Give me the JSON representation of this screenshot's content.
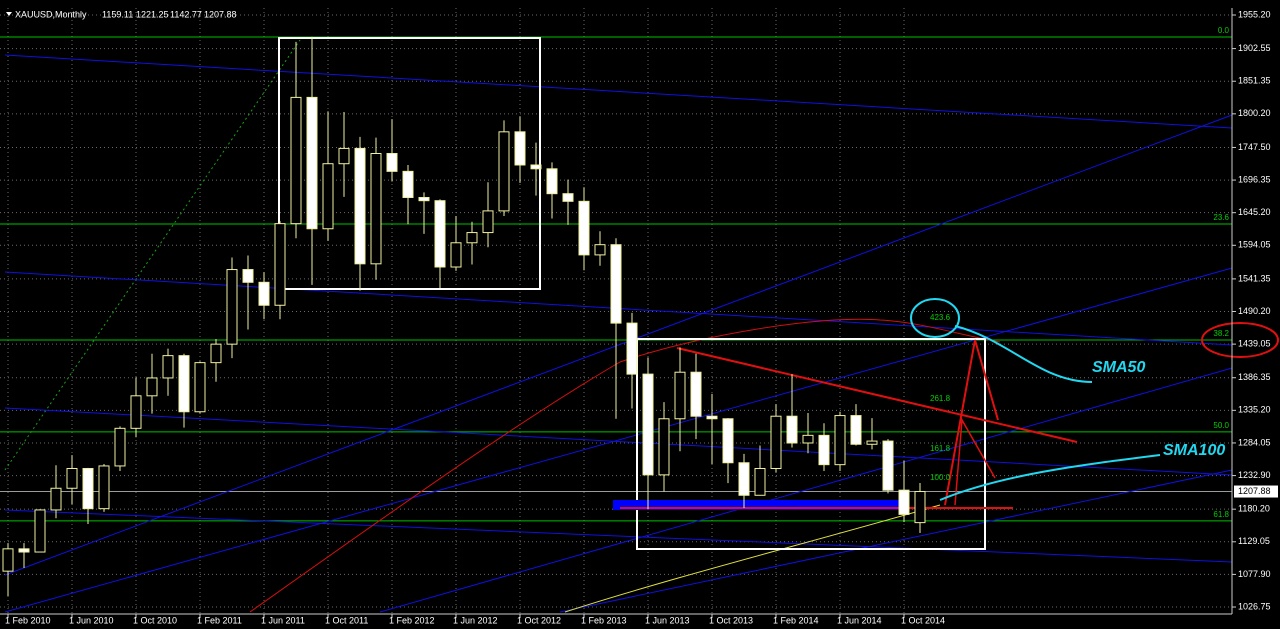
{
  "chart_data": {
    "type": "candlestick",
    "symbol": "XAUUSD,Monthly",
    "categories": [
      "1 Feb 2010",
      null,
      null,
      null,
      "1 Jun 2010",
      null,
      null,
      null,
      "1 Oct 2010",
      null,
      null,
      null,
      "1 Feb 2011",
      null,
      null,
      null,
      "1 Jun 2011",
      null,
      null,
      null,
      "1 Oct 2011",
      null,
      null,
      null,
      "1 Feb 2012",
      null,
      null,
      null,
      "1 Jun 2012",
      null,
      null,
      null,
      "1 Oct 2012",
      null,
      null,
      null,
      "1 Feb 2013",
      null,
      null,
      null,
      "1 Jun 2013",
      null,
      null,
      null,
      "1 Oct 2013",
      null,
      null,
      null,
      "1 Feb 2014",
      null,
      null,
      null,
      "1 Jun 2014",
      null,
      null,
      null,
      "1 Oct 2014",
      null
    ],
    "open": [
      1083,
      1118,
      1113,
      1179,
      1213,
      1244,
      1181,
      1248,
      1307,
      1358,
      1386,
      1421,
      1333,
      1410,
      1439,
      1556,
      1536,
      1500,
      1628,
      1826,
      1620,
      1722,
      1746,
      1565,
      1738,
      1710,
      1669,
      1664,
      1560,
      1598,
      1614,
      1648,
      1772,
      1720,
      1714,
      1675,
      1663,
      1579,
      1595,
      1472,
      1392,
      1234,
      1322,
      1395,
      1326,
      1322,
      1253,
      1202,
      1244,
      1326,
      1284,
      1296,
      1250,
      1327,
      1282,
      1287,
      1210,
      1159.11
    ],
    "high": [
      1127,
      1127,
      1180,
      1249,
      1265,
      1245,
      1251,
      1310,
      1387,
      1424,
      1432,
      1424,
      1412,
      1447,
      1575,
      1578,
      1552,
      1632,
      1913,
      1921,
      1804,
      1803,
      1764,
      1763,
      1792,
      1720,
      1677,
      1666,
      1640,
      1631,
      1693,
      1790,
      1796,
      1755,
      1724,
      1697,
      1685,
      1616,
      1605,
      1488,
      1418,
      1348,
      1434,
      1424,
      1361,
      1323,
      1267,
      1280,
      1345,
      1392,
      1331,
      1315,
      1333,
      1345,
      1323,
      1290,
      1256,
      1221.25
    ],
    "low": [
      1044,
      1088,
      1114,
      1166,
      1188,
      1157,
      1176,
      1240,
      1293,
      1330,
      1358,
      1308,
      1330,
      1380,
      1417,
      1462,
      1478,
      1478,
      1605,
      1532,
      1601,
      1670,
      1523,
      1540,
      1694,
      1627,
      1612,
      1527,
      1554,
      1564,
      1591,
      1640,
      1692,
      1672,
      1636,
      1626,
      1555,
      1562,
      1322,
      1338,
      1180,
      1208,
      1271,
      1290,
      1251,
      1221,
      1182,
      1202,
      1238,
      1277,
      1268,
      1240,
      1240,
      1280,
      1274,
      1205,
      1160,
      1142.77
    ],
    "close": [
      1118,
      1113,
      1179,
      1213,
      1244,
      1181,
      1248,
      1307,
      1358,
      1386,
      1421,
      1333,
      1410,
      1439,
      1556,
      1536,
      1500,
      1628,
      1826,
      1620,
      1722,
      1746,
      1565,
      1738,
      1710,
      1669,
      1664,
      1560,
      1598,
      1614,
      1648,
      1772,
      1720,
      1714,
      1675,
      1663,
      1579,
      1595,
      1472,
      1392,
      1234,
      1322,
      1395,
      1326,
      1322,
      1253,
      1202,
      1244,
      1326,
      1284,
      1296,
      1250,
      1327,
      1282,
      1287,
      1210,
      1172,
      1207.88
    ],
    "up_color": "#000000",
    "down_color": "#ffffff",
    "wick_color": "#f0f0a0",
    "ylim": [
      1015.8,
      1966.2
    ],
    "yticks": [
      {
        "value": 1026.75,
        "label": "1026.75"
      },
      {
        "value": 1077.9,
        "label": "1077.90"
      },
      {
        "value": 1129.05,
        "label": "1129.05"
      },
      {
        "value": 1180.2,
        "label": "1180.20"
      },
      {
        "value": 1232.9,
        "label": "1232.90"
      },
      {
        "value": 1284.05,
        "label": "1284.05"
      },
      {
        "value": 1335.2,
        "label": "1335.20"
      },
      {
        "value": 1386.35,
        "label": "1386.35"
      },
      {
        "value": 1439.05,
        "label": "1439.05"
      },
      {
        "value": 1490.2,
        "label": "1490.20"
      },
      {
        "value": 1541.35,
        "label": "1541.35"
      },
      {
        "value": 1594.05,
        "label": "1594.05"
      },
      {
        "value": 1645.2,
        "label": "1645.20"
      },
      {
        "value": 1696.35,
        "label": "1696.35"
      },
      {
        "value": 1747.5,
        "label": "1747.50"
      },
      {
        "value": 1800.2,
        "label": "1800.20"
      },
      {
        "value": 1851.35,
        "label": "1851.35"
      },
      {
        "value": 1902.55,
        "label": "1902.55"
      },
      {
        "value": 1955.2,
        "label": "1955.20"
      }
    ],
    "grid": true,
    "fibo_levels": [
      {
        "label": "0.0",
        "value": 1920.7
      },
      {
        "label": "23.6",
        "value": 1627.5
      },
      {
        "label": "38.2",
        "value": 1445.6
      },
      {
        "label": "50.0",
        "value": 1301.4
      },
      {
        "label": "61.8",
        "value": 1161.8
      }
    ],
    "fibo_extension_labels": [
      "423.6",
      "261.8",
      "161.8",
      "100.0"
    ],
    "annotations": [
      "SMA50",
      "SMA100"
    ]
  }
}
